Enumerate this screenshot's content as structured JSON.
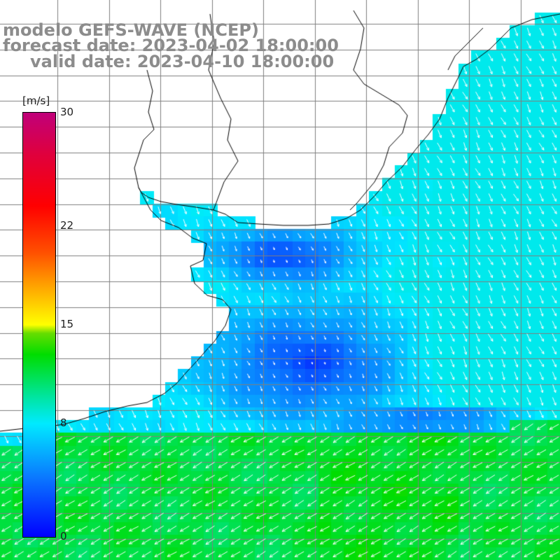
{
  "title": {
    "line1": "modelo GEFS-WAVE (NCEP)",
    "line2": "forecast date: 2023-04-02 18:00:00",
    "line3": "valid date: 2023-04-10 18:00:00"
  },
  "legend": {
    "unit": "[m/s]",
    "ticks": [
      {
        "label": "30",
        "value": 30
      },
      {
        "label": "22",
        "value": 22
      },
      {
        "label": "15",
        "value": 15
      },
      {
        "label": "8",
        "value": 8
      },
      {
        "label": "0",
        "value": 0
      }
    ],
    "range": [
      0,
      30
    ]
  },
  "colors": {
    "land": "#ffffff",
    "coastline": "#000000",
    "grid": "#7f7f7f",
    "arrows": "#ffffff",
    "title_text": "#8c8c8c"
  },
  "map": {
    "field": "wind speed",
    "wind_direction": "mostly from the north-east over the shelf, from the south-west south of the front",
    "grid_lines": true
  }
}
